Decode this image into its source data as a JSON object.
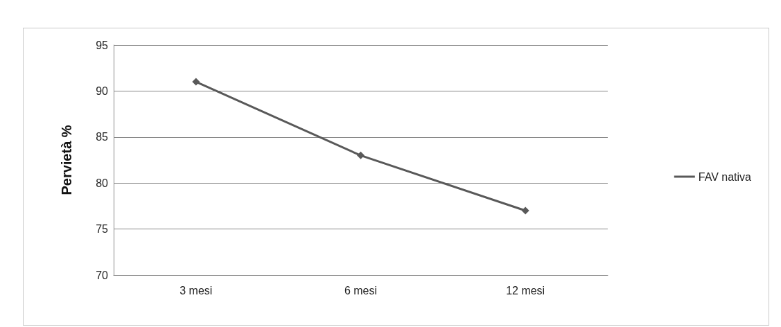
{
  "chart_data": {
    "type": "line",
    "ylabel": "Pervietà %",
    "categories": [
      "3 mesi",
      "6 mesi",
      "12 mesi"
    ],
    "series": [
      {
        "name": "FAV nativa",
        "color": "#595959",
        "values": [
          91,
          83,
          77
        ]
      }
    ],
    "ylim": [
      70,
      95
    ],
    "yticks": [
      70,
      75,
      80,
      85,
      90,
      95
    ],
    "grid": "y",
    "legend": "right",
    "marker": "diamond",
    "line_style": "solid"
  }
}
